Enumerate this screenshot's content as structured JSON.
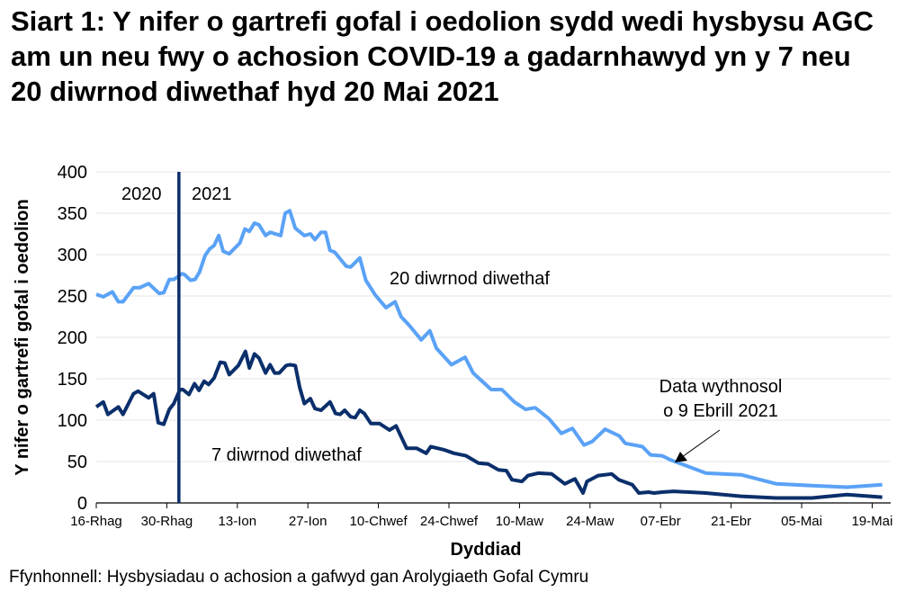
{
  "chart_data": {
    "type": "line",
    "title": "Siart 1: Y nifer o gartrefi gofal i oedolion sydd wedi hysbysu AGC am un neu fwy o achosion COVID-19 a gadarnhawyd yn y 7 neu 20 diwrnod diwethaf hyd 20 Mai 2021",
    "xlabel": "Dyddiad",
    "ylabel": "Y nifer o gartrefi gofal i oedolion",
    "ylim": [
      0,
      400
    ],
    "yticks": [
      "0",
      "50",
      "100",
      "150",
      "200",
      "250",
      "300",
      "350",
      "400"
    ],
    "xlim_days_from_16_Rhag": [
      0,
      157
    ],
    "xticks": [
      {
        "day": 0,
        "label": "16-Rhag"
      },
      {
        "day": 14,
        "label": "30-Rhag"
      },
      {
        "day": 28,
        "label": "13-Ion"
      },
      {
        "day": 42,
        "label": "27-Ion"
      },
      {
        "day": 56,
        "label": "10-Chwef"
      },
      {
        "day": 70,
        "label": "24-Chwef"
      },
      {
        "day": 84,
        "label": "10-Maw"
      },
      {
        "day": 98,
        "label": "24-Maw"
      },
      {
        "day": 112,
        "label": "07-Ebr"
      },
      {
        "day": 126,
        "label": "21-Ebr"
      },
      {
        "day": 140,
        "label": "05-Mai"
      },
      {
        "day": 154,
        "label": "19-Mai"
      }
    ],
    "grid": true,
    "year_divider": {
      "day": 16.4,
      "left_label": "2020",
      "right_label": "2021"
    },
    "series": [
      {
        "name": "20 diwrnod diwethaf",
        "color": "#5aa2f6",
        "x": [
          0,
          1.4,
          3.2,
          4.4,
          5.3,
          7.4,
          8.6,
          10.4,
          12.5,
          13.4,
          14.5,
          15.4,
          17,
          17.5,
          18.7,
          19.6,
          20.5,
          21.6,
          22.5,
          23.4,
          24.3,
          25.2,
          26.4,
          28.5,
          29.5,
          30.4,
          31.4,
          32.3,
          33.6,
          34.5,
          36.6,
          37.5,
          38.4,
          39.5,
          41.3,
          42.5,
          43.4,
          44.6,
          45.5,
          46.4,
          47.3,
          49.6,
          50.5,
          52.3,
          53.5,
          55.4,
          57.5,
          59.3,
          60.5,
          62.2,
          64.5,
          66.2,
          67.5,
          70.5,
          73.2,
          74.8,
          78.4,
          80.5,
          83,
          85.2,
          87.1,
          89.8,
          92.3,
          94.5,
          96.8,
          98.4,
          101,
          103.8,
          105,
          108.4,
          110,
          112.3,
          114,
          121,
          128,
          135,
          142,
          149,
          156
        ],
        "values": [
          252,
          249,
          255,
          243,
          243,
          260,
          260,
          265,
          253,
          254,
          270,
          270,
          277,
          276,
          269,
          270,
          279,
          299,
          307,
          311,
          323,
          304,
          301,
          314,
          331,
          328,
          338,
          336,
          323,
          327,
          323,
          350,
          353,
          332,
          323,
          325,
          318,
          327,
          327,
          305,
          303,
          286,
          285,
          296,
          269,
          251,
          236,
          243,
          225,
          214,
          197,
          208,
          187,
          167,
          176,
          157,
          137,
          137,
          122,
          113,
          115,
          102,
          84,
          90,
          70,
          74,
          89,
          81,
          72,
          68,
          58,
          57,
          52,
          36,
          34,
          23,
          21,
          19,
          22
        ]
      },
      {
        "name": "7 diwrnod diwethaf",
        "color": "#0b2f6b",
        "x": [
          0,
          1.4,
          2.3,
          4.4,
          5.3,
          7.4,
          8.3,
          10.4,
          11.4,
          12.3,
          13.4,
          14.5,
          15.4,
          16.6,
          17.2,
          18.4,
          19.5,
          20.4,
          21.4,
          22.3,
          23.4,
          24.6,
          25.5,
          26.4,
          28.2,
          29.6,
          30.4,
          31.4,
          32.3,
          33.6,
          34.5,
          35.4,
          36.3,
          37.7,
          38.4,
          39.5,
          40.4,
          41.3,
          42.5,
          43.4,
          44.6,
          46.4,
          47.5,
          48.4,
          49.3,
          50.5,
          51.4,
          52.3,
          53.2,
          54.5,
          56.2,
          58.2,
          59.5,
          61.6,
          63.6,
          65.5,
          66.4,
          69.1,
          71,
          73.4,
          75.9,
          77.8,
          79.8,
          81.4,
          82.5,
          84.5,
          85.7,
          87.7,
          90.4,
          93,
          95,
          96.6,
          97.4,
          99.6,
          102.3,
          103.7,
          106.4,
          107.7,
          109.6,
          110.7,
          112.3,
          114.6,
          121,
          128,
          135,
          142,
          149,
          156
        ],
        "values": [
          116,
          122,
          107,
          116,
          107,
          132,
          135,
          127,
          132,
          97,
          95,
          113,
          120,
          137,
          137,
          131,
          144,
          136,
          147,
          143,
          151,
          170,
          169,
          155,
          166,
          183,
          163,
          180,
          175,
          157,
          167,
          157,
          157,
          166,
          167,
          166,
          139,
          120,
          126,
          114,
          112,
          122,
          108,
          107,
          112,
          104,
          103,
          112,
          108,
          96,
          96,
          88,
          93,
          66,
          66,
          60,
          68,
          64,
          60,
          57,
          48,
          47,
          40,
          39,
          28,
          26,
          33,
          36,
          35,
          23,
          29,
          12,
          26,
          33,
          35,
          28,
          22,
          12,
          13,
          12,
          13,
          14,
          12,
          8,
          6,
          6,
          10,
          7
        ]
      }
    ],
    "annotations": [
      {
        "text": "20 diwrnod diwethaf"
      },
      {
        "text": "7 diwrnod diwethaf"
      },
      {
        "line1": "Data wythnosol",
        "line2": "o 9 Ebrill 2021",
        "arrow_to_day": 114
      }
    ],
    "source": "Ffynhonnell: Hysbysiadau o achosion a gafwyd gan Arolygiaeth Gofal Cymru"
  }
}
